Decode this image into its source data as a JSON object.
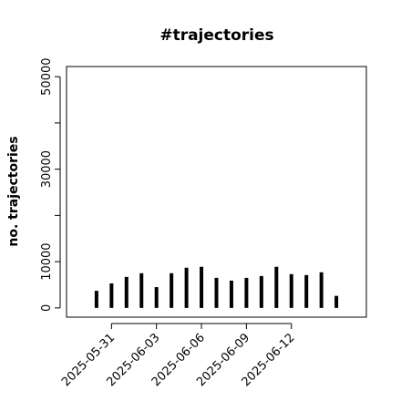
{
  "chart_data": {
    "type": "bar",
    "title": "#trajectories",
    "y_label": "no. trajectories",
    "x": [
      "2025-05-30",
      "2025-05-31",
      "2025-06-01",
      "2025-06-02",
      "2025-06-03",
      "2025-06-04",
      "2025-06-05",
      "2025-06-06",
      "2025-06-07",
      "2025-06-08",
      "2025-06-09",
      "2025-06-10",
      "2025-06-11",
      "2025-06-12",
      "2025-06-13",
      "2025-06-14",
      "2025-06-15"
    ],
    "values": [
      3700,
      5300,
      6700,
      7500,
      4500,
      7500,
      8700,
      8900,
      6500,
      5900,
      6500,
      6900,
      8900,
      7300,
      7100,
      7700,
      2600
    ],
    "color": "#000000",
    "xlim": [
      "2025-05-28",
      "2025-06-17"
    ],
    "xticks": [
      "2025-05-31",
      "2025-06-03",
      "2025-06-06",
      "2025-06-09",
      "2025-06-12"
    ],
    "ylim": [
      -2000,
      52200
    ],
    "yticks": [
      0,
      10000,
      30000,
      50000
    ],
    "yticks_minor": [
      20000,
      40000
    ]
  }
}
